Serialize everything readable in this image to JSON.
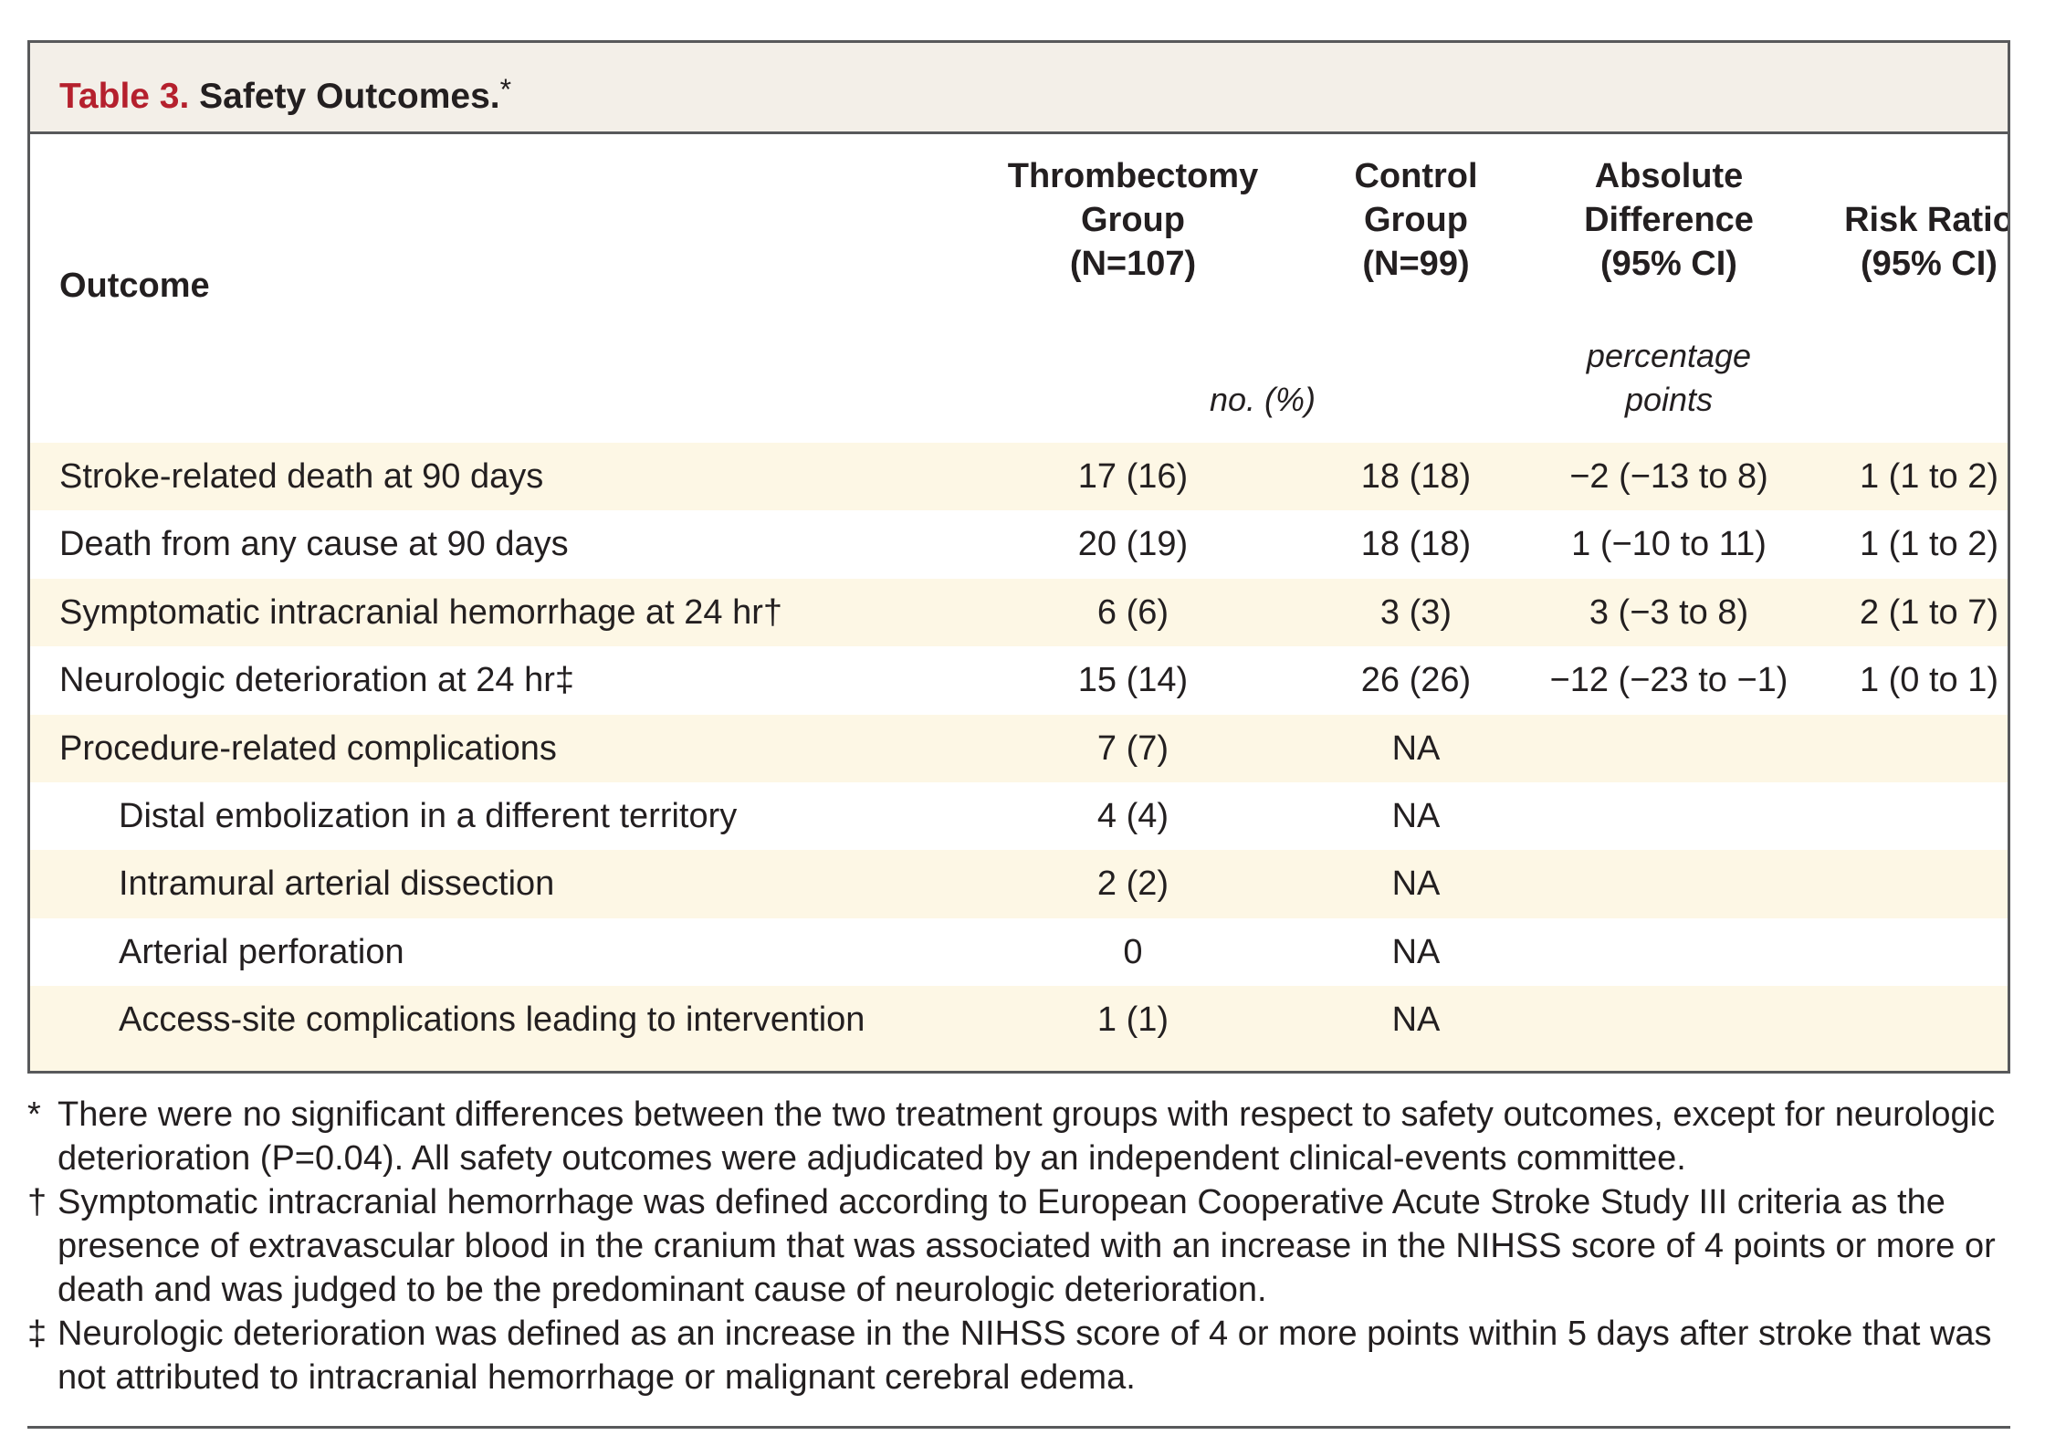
{
  "table": {
    "label": "Table 3.",
    "title": "Safety Outcomes.",
    "title_mark": "*",
    "columns": {
      "outcome": "Outcome",
      "thrombectomy": [
        "Thrombectomy",
        "Group",
        "(N=107)"
      ],
      "control": [
        "Control",
        "Group",
        "(N=99)"
      ],
      "absdiff": [
        "Absolute",
        "Difference",
        "(95% CI)"
      ],
      "riskratio": [
        "Risk Ratio",
        "(95% CI)"
      ]
    },
    "units": {
      "groups": "no. (%)",
      "absdiff": [
        "percentage",
        "points"
      ]
    },
    "rows": [
      {
        "outcome": "Stroke-related death at 90 days",
        "thrombectomy": "17 (16)",
        "control": "18 (18)",
        "absdiff": "−2 (−13 to 8)",
        "riskratio": "1 (1 to 2)"
      },
      {
        "outcome": "Death from any cause at 90 days",
        "thrombectomy": "20 (19)",
        "control": "18 (18)",
        "absdiff": "1 (−10 to 11)",
        "riskratio": "1 (1 to 2)"
      },
      {
        "outcome": "Symptomatic intracranial hemorrhage at 24 hr†",
        "thrombectomy": "6 (6)",
        "control": "3 (3)",
        "absdiff": "3 (−3 to 8)",
        "riskratio": "2 (1 to 7)"
      },
      {
        "outcome": "Neurologic deterioration at 24 hr‡",
        "thrombectomy": "15 (14)",
        "control": "26 (26)",
        "absdiff": "−12 (−23 to −1)",
        "riskratio": "1 (0 to 1)"
      },
      {
        "outcome": "Procedure-related complications",
        "thrombectomy": "7 (7)",
        "control": "NA",
        "absdiff": "",
        "riskratio": ""
      },
      {
        "outcome": "Distal embolization in a different territory",
        "thrombectomy": "4 (4)",
        "control": "NA",
        "absdiff": "",
        "riskratio": "",
        "indent": true
      },
      {
        "outcome": "Intramural arterial dissection",
        "thrombectomy": "2 (2)",
        "control": "NA",
        "absdiff": "",
        "riskratio": "",
        "indent": true
      },
      {
        "outcome": "Arterial perforation",
        "thrombectomy": "0",
        "control": "NA",
        "absdiff": "",
        "riskratio": "",
        "indent": true
      },
      {
        "outcome": "Access-site complications leading to intervention",
        "thrombectomy": "1 (1)",
        "control": "NA",
        "absdiff": "",
        "riskratio": "",
        "indent": true
      }
    ]
  },
  "footnotes": [
    {
      "symbol": "*",
      "text": "There were no significant differences between the two treatment groups with respect to safety outcomes, except for neurologic deterioration (P=0.04). All safety outcomes were adjudicated by an independent clinical-events committee."
    },
    {
      "symbol": "†",
      "text": "Symptomatic intracranial hemorrhage was defined according to European Cooperative Acute Stroke Study III criteria as the presence of extravascular blood in the cranium that was associated with an increase in the NIHSS score of 4 points or more or death and was judged to be the predominant cause of neurologic deterioration."
    },
    {
      "symbol": "‡",
      "text": "Neurologic deterioration was defined as an increase in the NIHSS score of 4 or more points within 5 days after stroke that was not attributed to intracranial hemorrhage or malignant cerebral edema."
    }
  ],
  "colors": {
    "label": "#b5202d",
    "title_bar": "#f3efe8",
    "shade": "#fdf7e5",
    "rule": "#58595b"
  }
}
